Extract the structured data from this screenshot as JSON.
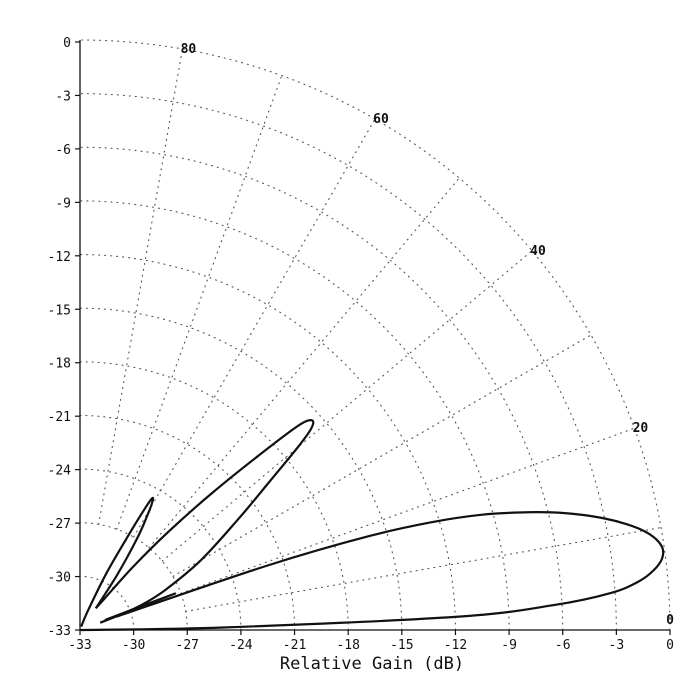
{
  "chart_data": {
    "type": "polar-line",
    "title": "",
    "xlabel": "Relative Gain (dB)",
    "ylabel": "",
    "r_range_db": [
      -33,
      0
    ],
    "ring_step_db": 3,
    "x_ticks": [
      "-33",
      "-30",
      "-27",
      "-24",
      "-21",
      "-18",
      "-15",
      "-12",
      "-9",
      "-6",
      "-3",
      "0"
    ],
    "y_ticks": [
      "0",
      "-3",
      "-6",
      "-9",
      "-12",
      "-15",
      "-18",
      "-21",
      "-24",
      "-27",
      "-30",
      "-33"
    ],
    "angle_labels": [
      "0",
      "20",
      "40",
      "60",
      "80"
    ],
    "angle_spokes_deg": [
      10,
      20,
      30,
      40,
      50,
      60,
      70,
      80
    ],
    "grid": true,
    "series": [
      {
        "points": [
          [
            0,
            -33
          ],
          [
            1,
            -25
          ],
          [
            2,
            -12
          ],
          [
            3,
            -6.5
          ],
          [
            4,
            -3.2
          ],
          [
            5,
            -1.6
          ],
          [
            6,
            -0.7
          ],
          [
            7,
            -0.2
          ],
          [
            8,
            -0.1
          ],
          [
            9,
            -0.4
          ],
          [
            10,
            -1.0
          ],
          [
            11,
            -1.9
          ],
          [
            12,
            -3.0
          ],
          [
            13,
            -4.3
          ],
          [
            14,
            -5.8
          ],
          [
            15,
            -7.6
          ],
          [
            16,
            -9.6
          ],
          [
            17,
            -12.3
          ],
          [
            18,
            -16
          ],
          [
            19,
            -22
          ],
          [
            20,
            -30.8
          ]
        ]
      },
      {
        "points": [
          [
            20,
            -30.8
          ],
          [
            22,
            -29.4
          ],
          [
            25,
            -27.8
          ],
          [
            30,
            -25.2
          ],
          [
            35,
            -22.2
          ],
          [
            38,
            -19.6
          ],
          [
            40,
            -17.1
          ],
          [
            41,
            -15.9
          ],
          [
            42,
            -15.5
          ],
          [
            43,
            -16.1
          ],
          [
            44,
            -18.3
          ],
          [
            46,
            -22.3
          ],
          [
            48,
            -25.6
          ],
          [
            50,
            -28.4
          ],
          [
            52,
            -30.8
          ],
          [
            54,
            -31.5
          ]
        ]
      },
      {
        "points": [
          [
            54,
            -31.5
          ],
          [
            56,
            -29.3
          ],
          [
            58,
            -27.0
          ],
          [
            59.5,
            -25.6
          ],
          [
            60.5,
            -24.8
          ],
          [
            61.3,
            -24.6
          ],
          [
            62,
            -25.5
          ],
          [
            63,
            -27.2
          ],
          [
            65,
            -29.5
          ],
          [
            68,
            -31.9
          ],
          [
            70,
            -32.8
          ]
        ]
      },
      {
        "points": [
          [
            20,
            -31.8
          ],
          [
            21,
            -27.3
          ],
          [
            22,
            -31.5
          ]
        ]
      }
    ]
  }
}
